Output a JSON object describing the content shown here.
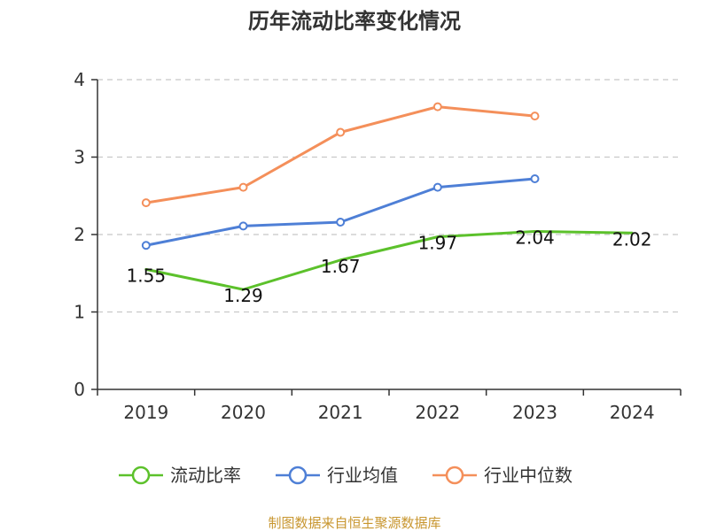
{
  "chart_data": {
    "type": "line",
    "title": "历年流动比率变化情况",
    "categories": [
      "2019",
      "2020",
      "2021",
      "2022",
      "2023",
      "2024"
    ],
    "ylim": [
      0,
      4
    ],
    "yticks": [
      "0",
      "1",
      "2",
      "3",
      "4"
    ],
    "grid": true,
    "legend_position": "bottom",
    "series": [
      {
        "name": "流动比率",
        "color": "#5cc12b",
        "values": [
          1.55,
          1.29,
          1.67,
          1.97,
          2.04,
          2.02
        ],
        "labels": [
          "1.55",
          "1.29",
          "1.67",
          "1.97",
          "2.04",
          "2.02"
        ]
      },
      {
        "name": "行业均值",
        "color": "#4e7fd6",
        "values": [
          1.86,
          2.11,
          2.16,
          2.61,
          2.72,
          null
        ]
      },
      {
        "name": "行业中位数",
        "color": "#f48f5a",
        "values": [
          2.41,
          2.61,
          3.32,
          3.65,
          3.53,
          null
        ]
      }
    ],
    "source": "制图数据来自恒生聚源数据库",
    "source_color": "#c8962f"
  }
}
